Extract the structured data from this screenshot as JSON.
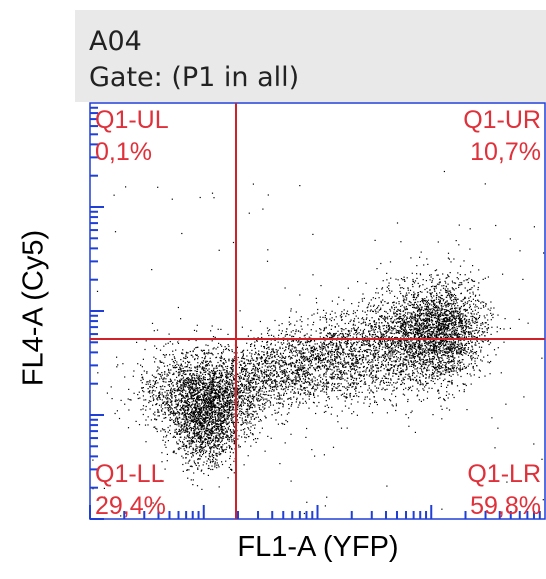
{
  "header": {
    "sample": "A04",
    "gate": "Gate: (P1 in all)"
  },
  "chart_data": {
    "type": "scatter",
    "title": "A04",
    "subtitle": "Gate: (P1 in all)",
    "xlabel": "FL1-A (YFP)",
    "ylabel": "FL4-A (Cy5)",
    "axis_scale": "log",
    "quadrant_gate": "Q1",
    "quadrants": [
      {
        "name": "Q1-UL",
        "percent": "0,1%",
        "value": 0.1
      },
      {
        "name": "Q1-UR",
        "percent": "10,7%",
        "value": 10.7
      },
      {
        "name": "Q1-LL",
        "percent": "29,4%",
        "value": 29.4
      },
      {
        "name": "Q1-LR",
        "percent": "59,8%",
        "value": 59.8
      }
    ],
    "colors": {
      "quadrant_lines": "#d0202a",
      "quadrant_labels": "#e0303a",
      "ticks": "#1f3fd6",
      "points": "#000000",
      "frame": "#1f3fd6"
    },
    "grid": false,
    "legend": "none"
  }
}
